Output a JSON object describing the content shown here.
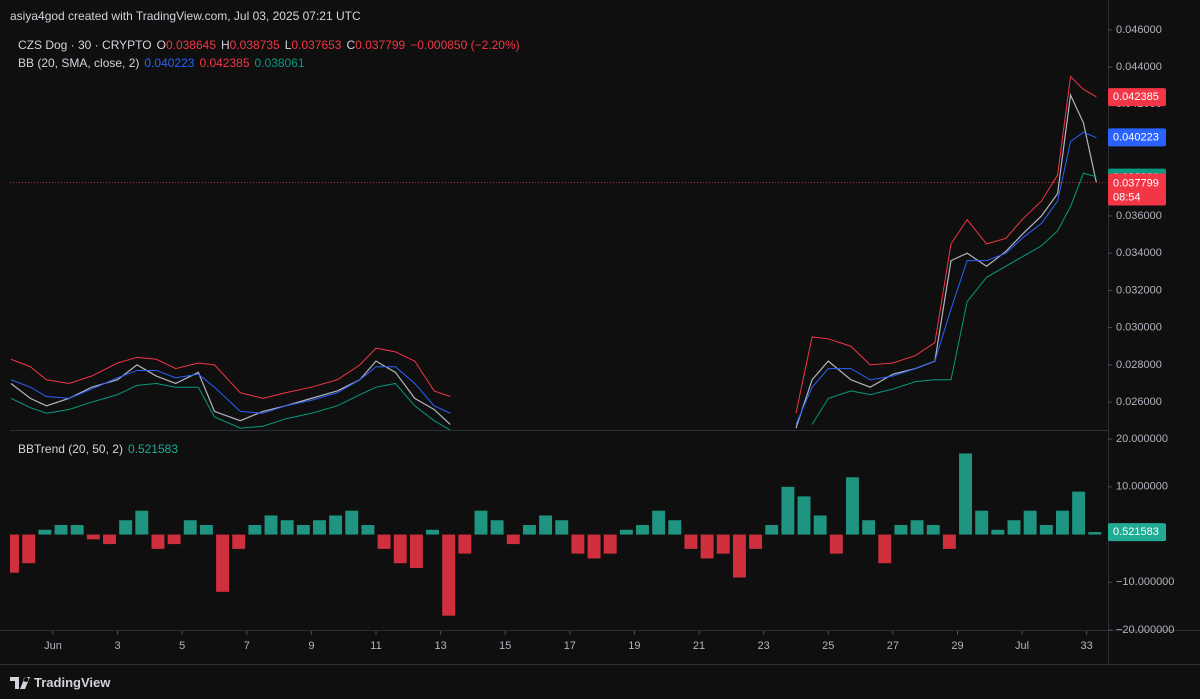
{
  "header": {
    "credit": "asiya4god created with TradingView.com, Jul 03, 2025 07:21 UTC"
  },
  "footer": {
    "brand": "TradingView"
  },
  "chart_data": [
    {
      "type": "line",
      "symbol": "CZS Dog · 30 · CRYPTO",
      "ohlc": [
        {
          "key": "O",
          "value": 0.038645
        },
        {
          "key": "H",
          "value": 0.038735
        },
        {
          "key": "L",
          "value": 0.037653
        },
        {
          "key": "C",
          "value": 0.037799
        }
      ],
      "change": "−0.000850 (−2.20%)",
      "indicator": "BB (20, SMA, close, 2)",
      "countdown": "08:54",
      "x": [
        -0.3,
        0.3,
        0.8,
        1.5,
        2.2,
        3,
        3.6,
        4.2,
        4.8,
        5.5,
        6,
        6.8,
        7.5,
        8.2,
        9,
        9.8,
        10.5,
        11,
        11.6,
        12.2,
        12.8,
        13.3,
        18.5,
        24,
        24.5,
        25,
        25.7,
        26.3,
        27,
        27.7,
        28.3,
        28.8,
        29.3,
        29.9,
        30.5,
        31,
        31.6,
        32.1,
        32.5,
        32.9,
        33.3
      ],
      "series": [
        {
          "color": "#b2b5be",
          "values": [
            0.027,
            0.0262,
            0.0258,
            0.0262,
            0.0268,
            0.0272,
            0.028,
            0.0274,
            0.027,
            0.0276,
            0.0255,
            0.025,
            0.0255,
            0.0258,
            0.0262,
            0.0266,
            0.0272,
            0.0282,
            0.0276,
            0.0262,
            0.0256,
            0.0248,
            null,
            0.0246,
            0.0272,
            0.0282,
            0.0272,
            0.0268,
            0.0275,
            0.0278,
            0.0282,
            0.0336,
            0.034,
            0.0333,
            0.0341,
            0.035,
            0.036,
            0.0372,
            0.0425,
            0.041,
            0.0378
          ]
        },
        {
          "color": "#f23645",
          "last": 0.042385,
          "values": [
            0.0283,
            0.0279,
            0.0272,
            0.027,
            0.0274,
            0.0281,
            0.0284,
            0.0283,
            0.0278,
            0.0281,
            0.028,
            0.0265,
            0.0262,
            0.0265,
            0.0268,
            0.0272,
            0.028,
            0.0289,
            0.0287,
            0.0282,
            0.0266,
            0.0263,
            null,
            0.0254,
            0.0295,
            0.0294,
            0.029,
            0.028,
            0.0281,
            0.0285,
            0.0292,
            0.0345,
            0.0358,
            0.0345,
            0.0348,
            0.0358,
            0.0368,
            0.0382,
            0.0435,
            0.0428,
            0.0424
          ]
        },
        {
          "color": "#2962ff",
          "last": 0.040223,
          "values": [
            0.0272,
            0.0268,
            0.0263,
            0.0262,
            0.0267,
            0.0273,
            0.0277,
            0.0277,
            0.0273,
            0.0275,
            0.0268,
            0.0255,
            0.0254,
            0.0258,
            0.0261,
            0.0265,
            0.0272,
            0.0279,
            0.0279,
            0.027,
            0.0258,
            0.0254,
            null,
            0.0248,
            0.0268,
            0.0278,
            0.0278,
            0.0272,
            0.0274,
            0.0278,
            0.0282,
            0.031,
            0.0336,
            0.0336,
            0.034,
            0.0348,
            0.0356,
            0.0368,
            0.04,
            0.0405,
            0.0402
          ]
        },
        {
          "color": "#089981",
          "last": 0.038061,
          "values": [
            0.0262,
            0.0257,
            0.0254,
            0.0256,
            0.026,
            0.0264,
            0.0269,
            0.027,
            0.0268,
            0.0268,
            0.0252,
            0.0246,
            0.0247,
            0.0251,
            0.0254,
            0.0258,
            0.0264,
            0.0268,
            0.027,
            0.0258,
            0.025,
            0.0245,
            null,
            null,
            0.0248,
            0.0262,
            0.0266,
            0.0264,
            0.0267,
            0.0271,
            0.0272,
            0.0272,
            0.0314,
            0.0327,
            0.0333,
            0.0338,
            0.0344,
            0.0352,
            0.0365,
            0.0383,
            0.0381
          ]
        }
      ],
      "xlim": [
        -0.33,
        33.66
      ],
      "ylim": [
        0.0245,
        0.0461
      ],
      "yticks": [
        {
          "value": 0.026,
          "label": "0.026000"
        },
        {
          "value": 0.028,
          "label": "0.028000"
        },
        {
          "value": 0.03,
          "label": "0.030000"
        },
        {
          "value": 0.032,
          "label": "0.032000"
        },
        {
          "value": 0.034,
          "label": "0.034000"
        },
        {
          "value": 0.036,
          "label": "0.036000"
        },
        {
          "value": 0.038,
          "label": "0.038000"
        },
        {
          "value": 0.04,
          "label": "0.040000"
        },
        {
          "value": 0.042,
          "label": "0.042000"
        },
        {
          "value": 0.044,
          "label": "0.044000"
        },
        {
          "value": 0.046,
          "label": "0.046000"
        }
      ]
    },
    {
      "type": "bar",
      "title": "BBTrend (20, 50, 2)",
      "positive_color": "#22ab94",
      "negative_color": "#f23645",
      "x": [
        -0.25,
        0.25,
        0.75,
        1.25,
        1.75,
        2.25,
        2.75,
        3.25,
        3.75,
        4.25,
        4.75,
        5.25,
        5.75,
        6.25,
        6.75,
        7.25,
        7.75,
        8.25,
        8.75,
        9.25,
        9.75,
        10.25,
        10.75,
        11.25,
        11.75,
        12.25,
        12.75,
        13.25,
        13.75,
        14.25,
        14.75,
        15.25,
        15.75,
        16.25,
        16.75,
        17.25,
        17.75,
        18.25,
        18.75,
        19.25,
        19.75,
        20.25,
        20.75,
        21.25,
        21.75,
        22.25,
        22.75,
        23.25,
        23.75,
        24.25,
        24.75,
        25.25,
        25.75,
        26.25,
        26.75,
        27.25,
        27.75,
        28.25,
        28.75,
        29.25,
        29.75,
        30.25,
        30.75,
        31.25,
        31.75,
        32.25,
        32.75,
        33.25
      ],
      "values": [
        -8,
        -6,
        1,
        2,
        2,
        -1,
        -2,
        3,
        5,
        -3,
        -2,
        3,
        2,
        -12,
        -3,
        2,
        4,
        3,
        2,
        3,
        4,
        5,
        2,
        -3,
        -6,
        -7,
        1,
        -17,
        -4,
        5,
        3,
        -2,
        2,
        4,
        3,
        -4,
        -5,
        -4,
        1,
        2,
        5,
        3,
        -3,
        -5,
        -4,
        -9,
        -3,
        2,
        10,
        8,
        4,
        -4,
        12,
        3,
        -6,
        2,
        3,
        2,
        -3,
        17,
        5,
        1,
        3,
        5,
        2,
        5,
        9,
        0.521583
      ],
      "xlim": [
        -0.33,
        33.66
      ],
      "xticks": [
        {
          "value": 1,
          "label": "Jun"
        },
        3,
        5,
        7,
        9,
        11,
        13,
        15,
        17,
        19,
        21,
        23,
        25,
        27,
        29,
        {
          "value": 31,
          "label": "Jul"
        },
        33
      ],
      "ylim": [
        -20,
        21.7
      ],
      "yticks": [
        {
          "value": 20,
          "label": "20.000000"
        },
        {
          "value": 10,
          "label": "10.000000"
        },
        {
          "value": -10,
          "label": "−10.000000"
        },
        {
          "value": -20,
          "label": "−20.000000"
        }
      ]
    }
  ]
}
